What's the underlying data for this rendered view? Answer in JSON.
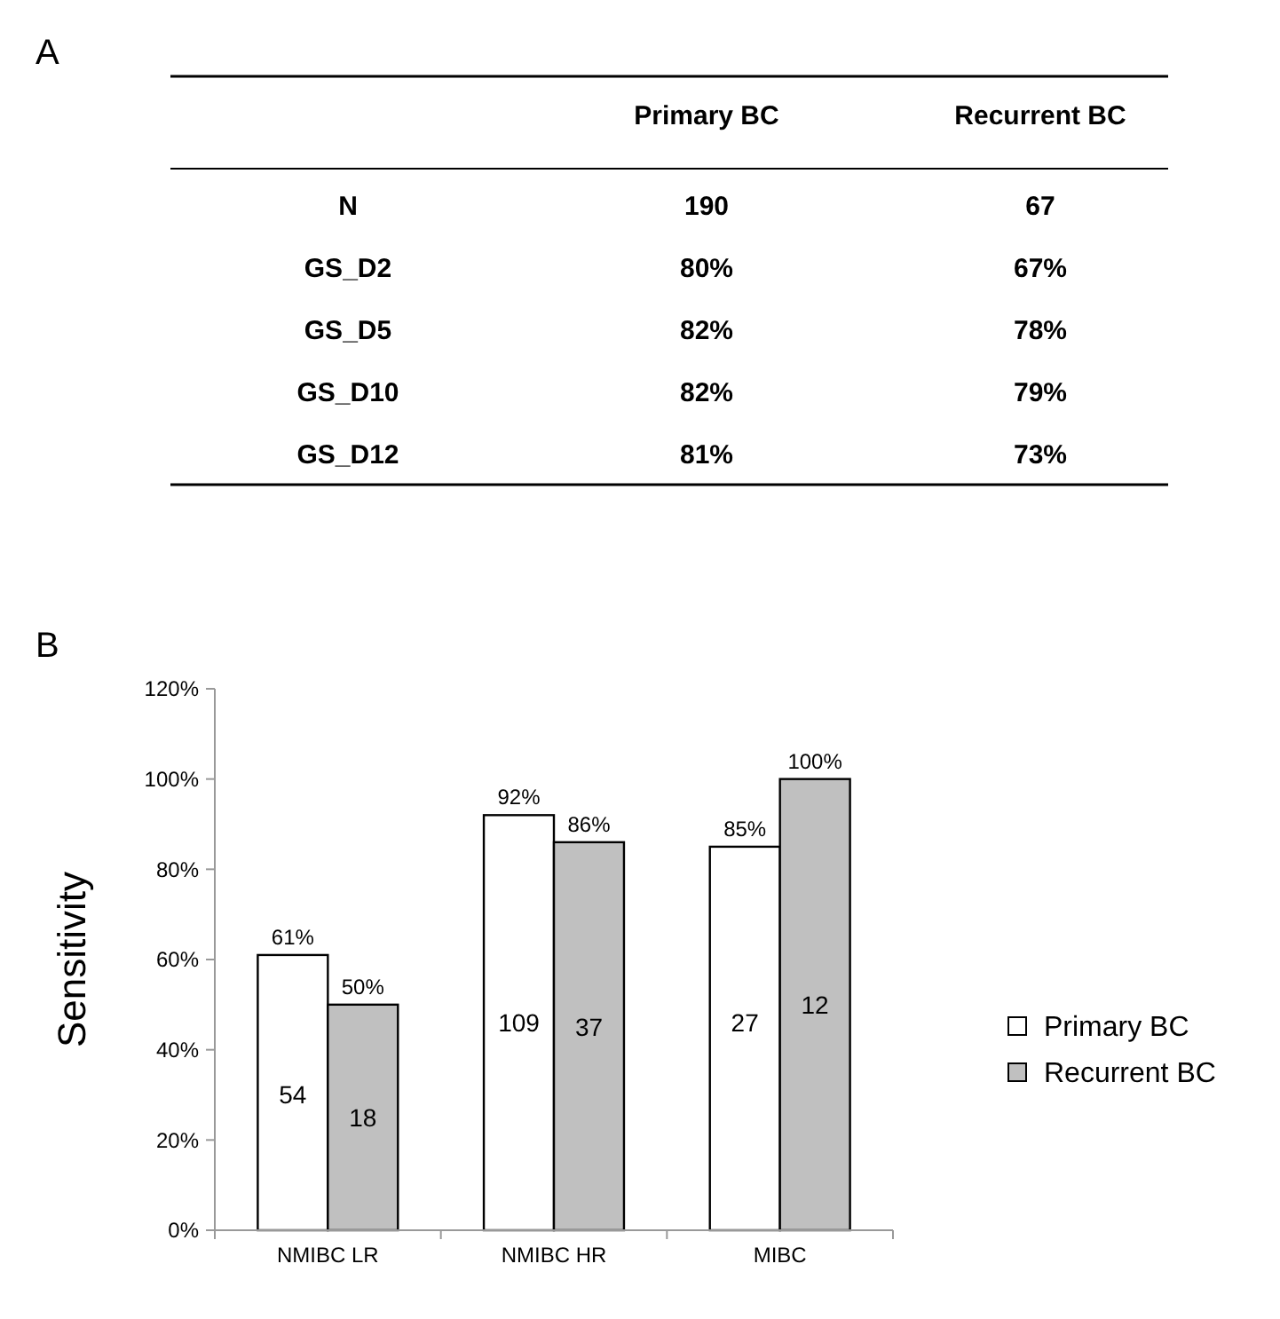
{
  "chart_data": [
    {
      "type": "other",
      "title": "A",
      "categories": [
        "N",
        "GS_D2",
        "GS_D5",
        "GS_D10",
        "GS_D12"
      ],
      "series": [
        {
          "name": "Primary BC",
          "values": [
            190,
            80,
            82,
            82,
            81
          ],
          "value_labels": [
            "190",
            "80%",
            "82%",
            "82%",
            "81%"
          ]
        },
        {
          "name": "Recurrent BC",
          "values": [
            67,
            67,
            78,
            79,
            73
          ],
          "value_labels": [
            "67",
            "67%",
            "78%",
            "79%",
            "73%"
          ]
        }
      ]
    },
    {
      "type": "bar",
      "title": "B",
      "ylabel": "Sensitivity",
      "categories": [
        "NMIBC LR",
        "NMIBC HR",
        "MIBC"
      ],
      "series": [
        {
          "name": "Primary BC",
          "color": "#ffffff",
          "values": [
            61,
            92,
            85
          ],
          "value_labels": [
            "61%",
            "92%",
            "85%"
          ]
        },
        {
          "name": "Recurrent BC",
          "color": "#c0c0c0",
          "values": [
            50,
            86,
            100
          ],
          "value_labels": [
            "50%",
            "86%",
            "100%"
          ]
        }
      ],
      "ylim": [
        0,
        120
      ],
      "yticks": [
        {
          "value": 0,
          "label": "0%"
        },
        {
          "value": 20,
          "label": "20%"
        },
        {
          "value": 40,
          "label": "40%"
        },
        {
          "value": 60,
          "label": "60%"
        },
        {
          "value": 80,
          "label": "80%"
        },
        {
          "value": 100,
          "label": "100%"
        },
        {
          "value": 120,
          "label": "120%"
        }
      ],
      "grid": false,
      "legend": "right",
      "annotations": [
        {
          "text": "54",
          "x": "NMIBC LR",
          "y": 30
        },
        {
          "text": "18",
          "x": "NMIBC LR",
          "y": 25
        },
        {
          "text": "109",
          "x": "NMIBC HR",
          "y": 46
        },
        {
          "text": "37",
          "x": "NMIBC HR",
          "y": 45
        },
        {
          "text": "27",
          "x": "MIBC",
          "y": 46
        },
        {
          "text": "12",
          "x": "MIBC",
          "y": 50
        }
      ]
    }
  ]
}
